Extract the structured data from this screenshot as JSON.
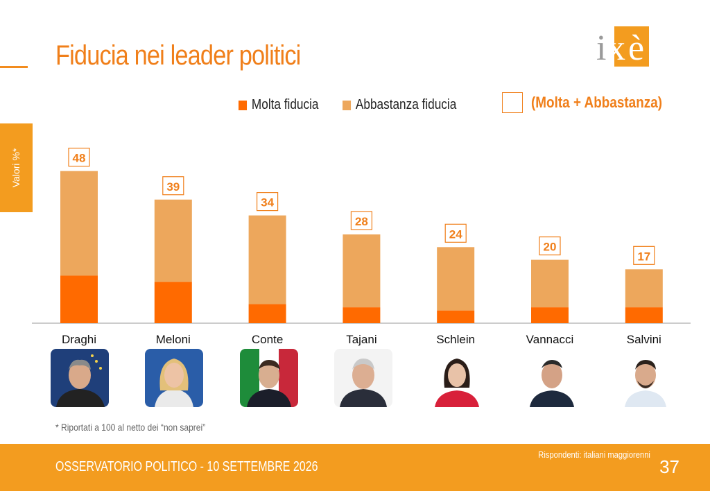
{
  "title": "Fiducia nei leader politici",
  "side_label": "Valori %*",
  "logo_text": "ixè",
  "legend": {
    "molta": "Molta fiducia",
    "abbastanza": "Abbastanza fiducia",
    "total": "(Molta + Abbastanza)"
  },
  "colors": {
    "molta": "#ff6a00",
    "abbastanza": "#eda75c",
    "accent": "#f07f1a",
    "footer": "#f39c1f"
  },
  "chart_data": {
    "type": "bar",
    "stacked": true,
    "categories": [
      "Draghi",
      "Meloni",
      "Conte",
      "Tajani",
      "Schlein",
      "Vannacci",
      "Salvini"
    ],
    "series": [
      {
        "name": "Molta fiducia",
        "values": [
          15,
          13,
          6,
          5,
          4,
          5,
          5
        ]
      },
      {
        "name": "Abbastanza fiducia",
        "values": [
          33,
          26,
          28,
          23,
          20,
          15,
          12
        ]
      }
    ],
    "totals": [
      48,
      39,
      34,
      28,
      24,
      20,
      17
    ],
    "ylim": [
      0,
      55
    ],
    "grid": false,
    "legend": "top"
  },
  "photos": [
    "Draghi",
    "Meloni",
    "Conte",
    "Tajani",
    "Schlein",
    "Vannacci",
    "Salvini"
  ],
  "footnote": "* Riportati a 100 al netto dei “non saprei”",
  "footer": {
    "left": "OSSERVATORIO POLITICO - 10 SETTEMBRE 2026",
    "respondents": "Rispondenti: italiani maggiorenni",
    "page": "37"
  }
}
